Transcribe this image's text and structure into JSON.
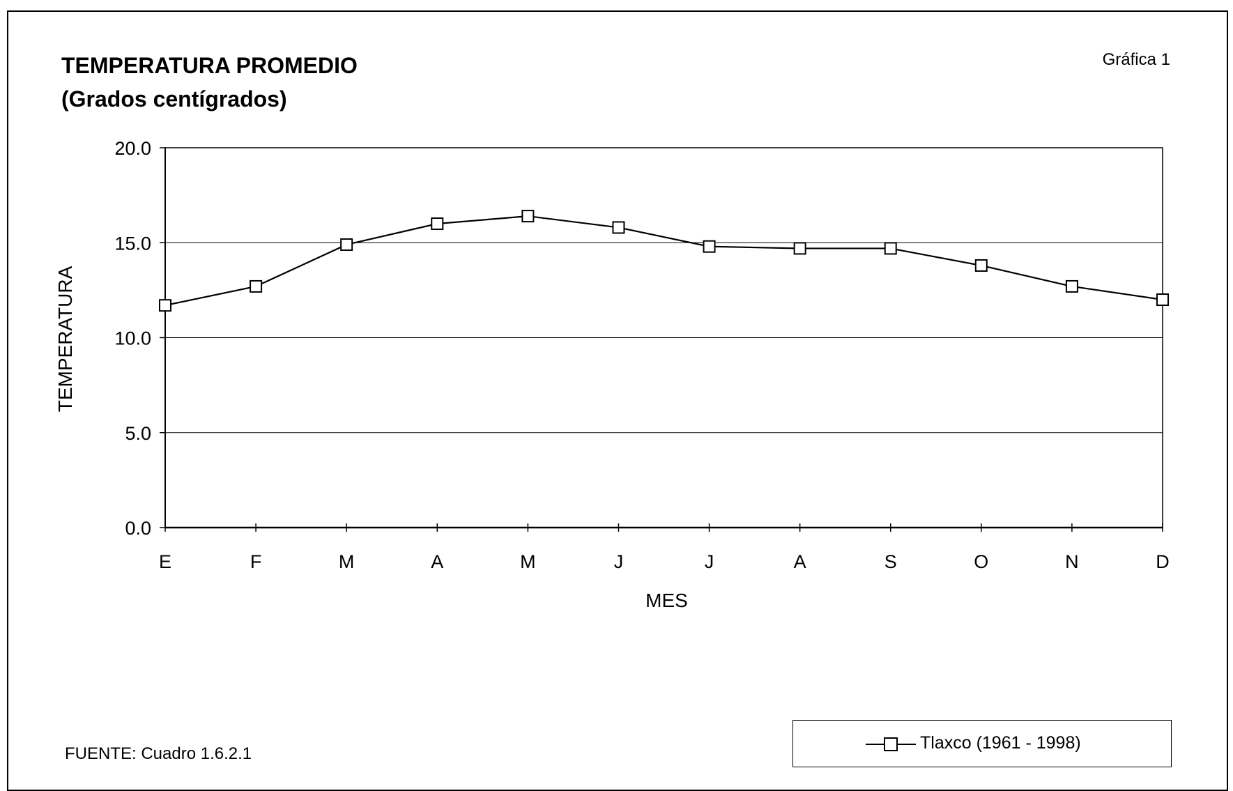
{
  "header": {
    "title_line1": "TEMPERATURA PROMEDIO",
    "title_line2": "(Grados centígrados)",
    "figure_number": "Gráfica 1"
  },
  "footer": {
    "source": "FUENTE: Cuadro 1.6.2.1"
  },
  "chart_data": {
    "type": "line",
    "title": "TEMPERATURA PROMEDIO (Grados centígrados)",
    "xlabel": "MES",
    "ylabel": "TEMPERATURA",
    "categories": [
      "E",
      "F",
      "M",
      "A",
      "M",
      "J",
      "J",
      "A",
      "S",
      "O",
      "N",
      "D"
    ],
    "ylim": [
      0,
      20
    ],
    "yticks": [
      "0.0",
      "5.0",
      "10.0",
      "15.0",
      "20.0"
    ],
    "ytick_values": [
      0,
      5,
      10,
      15,
      20
    ],
    "grid": "horizontal",
    "legend_position": "bottom-right",
    "marker": "open-square",
    "line_color": "#000000",
    "series": [
      {
        "name": "Tlaxco (1961 - 1998)",
        "values": [
          11.7,
          12.7,
          14.9,
          16.0,
          16.4,
          15.8,
          14.8,
          14.7,
          14.7,
          13.8,
          12.7,
          12.0
        ]
      }
    ]
  }
}
